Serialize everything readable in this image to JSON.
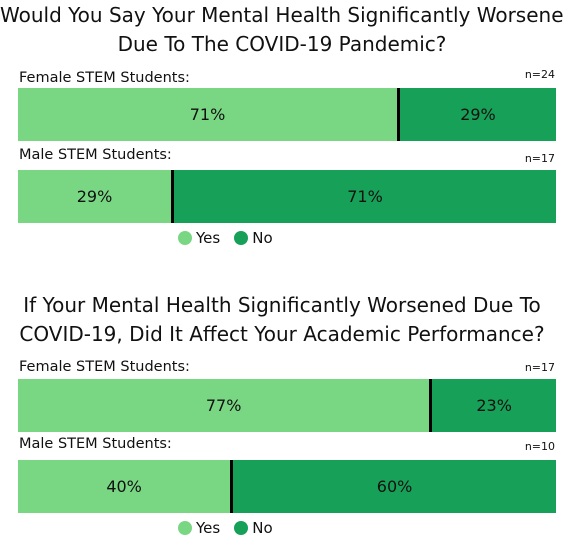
{
  "colors": {
    "yes": "#79d683",
    "no": "#17a057",
    "divider": "#000000"
  },
  "chart_data": [
    {
      "type": "bar",
      "stacked": true,
      "orientation": "horizontal",
      "unit": "%",
      "title_line1": "Would You Say Your Mental Health Significantly Worsened",
      "title_line2": "Due To The COVID-19 Pandemic?",
      "categories": [
        "Female STEM Students:",
        "Male STEM Students:"
      ],
      "n_labels": [
        "n=24",
        "n=17"
      ],
      "series": [
        {
          "name": "Yes",
          "values": [
            71,
            29
          ],
          "labels": [
            "71%",
            "29%"
          ]
        },
        {
          "name": "No",
          "values": [
            29,
            71
          ],
          "labels": [
            "29%",
            "71%"
          ]
        }
      ],
      "legend": {
        "placement": "bottom"
      }
    },
    {
      "type": "bar",
      "stacked": true,
      "orientation": "horizontal",
      "unit": "%",
      "title_line1": "If Your Mental Health Significantly Worsened Due To",
      "title_line2": "COVID-19, Did It Affect Your Academic Performance?",
      "categories": [
        "Female STEM Students:",
        "Male STEM Students:"
      ],
      "n_labels": [
        "n=17",
        "n=10"
      ],
      "series": [
        {
          "name": "Yes",
          "values": [
            77,
            40
          ],
          "labels": [
            "77%",
            "40%"
          ]
        },
        {
          "name": "No",
          "values": [
            23,
            60
          ],
          "labels": [
            "23%",
            "60%"
          ]
        }
      ],
      "legend": {
        "placement": "bottom"
      }
    }
  ]
}
